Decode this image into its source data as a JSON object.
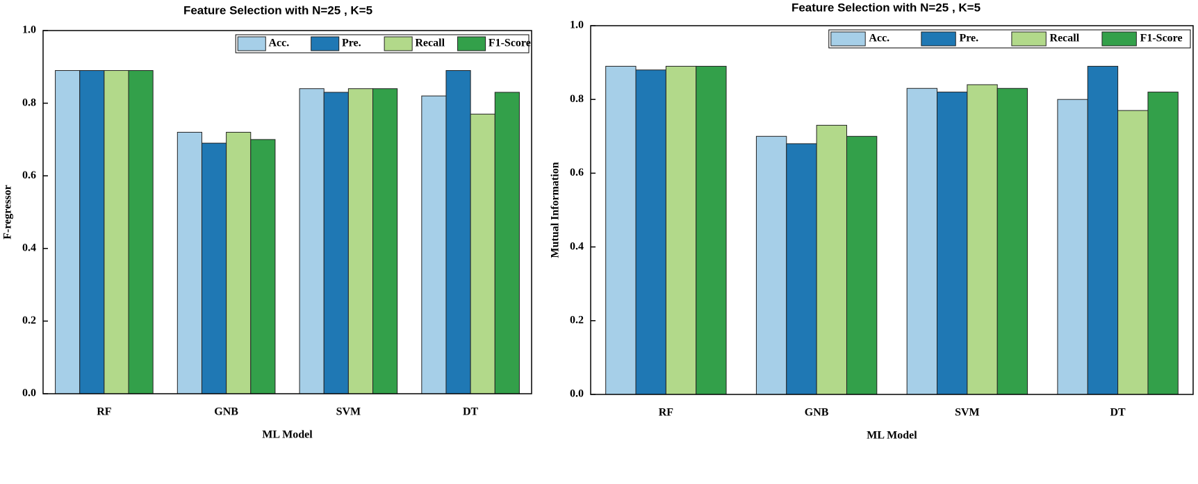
{
  "chart_data": [
    {
      "type": "bar",
      "title": "Feature Selection with N=25 , K=5",
      "xlabel": "ML Model",
      "ylabel": "F-regressor",
      "categories": [
        "RF",
        "GNB",
        "SVM",
        "DT"
      ],
      "series": [
        {
          "name": "Acc.",
          "color": "#a6cfe8",
          "values": [
            0.89,
            0.72,
            0.84,
            0.82
          ]
        },
        {
          "name": "Pre.",
          "color": "#1f78b4",
          "values": [
            0.89,
            0.69,
            0.83,
            0.89
          ]
        },
        {
          "name": "Recall",
          "color": "#b2d98a",
          "values": [
            0.89,
            0.72,
            0.84,
            0.77
          ]
        },
        {
          "name": "F1-Score",
          "color": "#33a04a",
          "values": [
            0.89,
            0.7,
            0.84,
            0.83
          ]
        }
      ],
      "ylim": [
        0,
        1
      ],
      "yticks": [
        {
          "value": 0,
          "label": "0.0"
        },
        0.2,
        0.4,
        0.6,
        0.8,
        {
          "value": 1,
          "label": "1.0"
        }
      ],
      "legend": "upper right"
    },
    {
      "type": "bar",
      "title": "Feature Selection with N=25 , K=5",
      "xlabel": "ML Model",
      "ylabel": "Mutual Information",
      "categories": [
        "RF",
        "GNB",
        "SVM",
        "DT"
      ],
      "series": [
        {
          "name": "Acc.",
          "color": "#a6cfe8",
          "values": [
            0.89,
            0.7,
            0.83,
            0.8
          ]
        },
        {
          "name": "Pre.",
          "color": "#1f78b4",
          "values": [
            0.88,
            0.68,
            0.82,
            0.89
          ]
        },
        {
          "name": "Recall",
          "color": "#b2d98a",
          "values": [
            0.89,
            0.73,
            0.84,
            0.77
          ]
        },
        {
          "name": "F1-Score",
          "color": "#33a04a",
          "values": [
            0.89,
            0.7,
            0.83,
            0.82
          ]
        }
      ],
      "ylim": [
        0,
        1
      ],
      "yticks": [
        {
          "value": 0,
          "label": "0.0"
        },
        0.2,
        0.4,
        0.6,
        0.8,
        {
          "value": 1,
          "label": "1.0"
        }
      ],
      "legend": "upper right"
    }
  ]
}
